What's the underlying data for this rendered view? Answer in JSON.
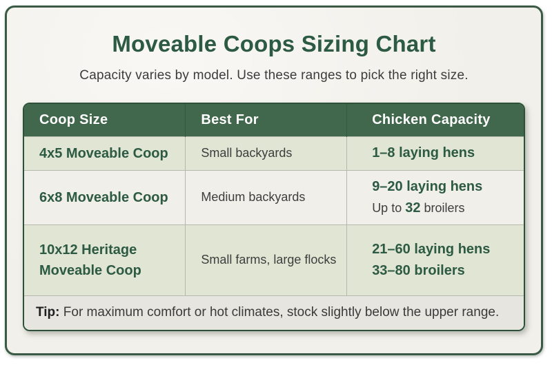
{
  "chart_data": {
    "type": "table",
    "title": "Moveable Coops Sizing Chart",
    "subtitle": "Capacity varies by model. Use these ranges to pick the right size.",
    "columns": [
      "Coop Size",
      "Best For",
      "Chicken Capacity"
    ],
    "rows": [
      {
        "coop_size": "4x5 Moveable Coop",
        "best_for": "Small backyards",
        "capacity": [
          "1–8 laying hens"
        ]
      },
      {
        "coop_size": "6x8 Moveable Coop",
        "best_for": "Medium backyards",
        "capacity": [
          "9–20 laying hens",
          "Up to 32 broilers"
        ]
      },
      {
        "coop_size": "10x12 Heritage Moveable Coop",
        "best_for": "Small farms, large flocks",
        "capacity": [
          "21–60 laying hens",
          "33–80 broilers"
        ]
      }
    ],
    "footnote_label": "Tip:",
    "footnote_text": "For maximum comfort or hot climates, stock slightly below the upper range.",
    "legend_position": "none",
    "grid": false
  },
  "display": {
    "broilers_note": {
      "prefix": "Up to ",
      "value": "32",
      "suffix": " broilers"
    }
  },
  "colors": {
    "page_background": "#ffffff",
    "card_background": "#f2f0ea",
    "card_border_green": "#3a5a45",
    "header_green": "#41684c",
    "accent_green": "#2d5a43",
    "row_light_green": "#e0e5d4",
    "row_cream": "#f1efe9",
    "tip_background": "#e6e5df",
    "table_border_green": "#2c5038",
    "cell_divider": "#b5b8ac",
    "body_text": "#3e3e3e"
  }
}
